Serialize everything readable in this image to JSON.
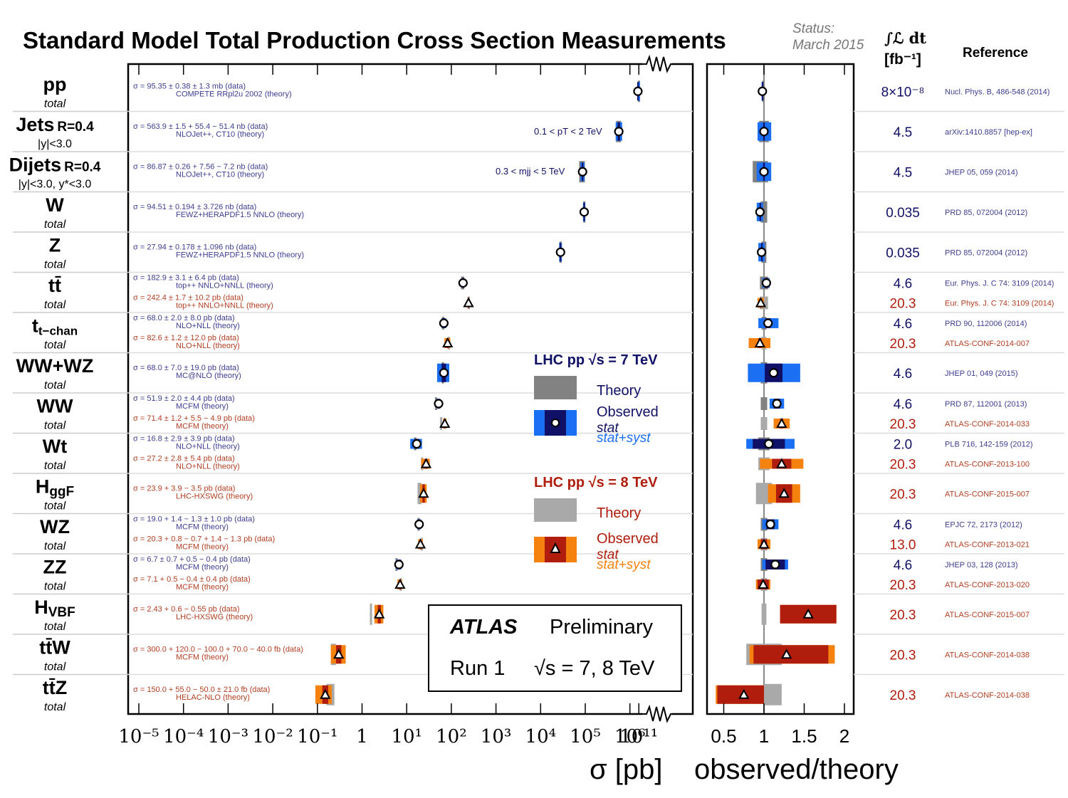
{
  "title": "Standard Model Total Production Cross Section Measurements",
  "status_label": "Status:",
  "status_date": "March 2015",
  "lumi_header": "∫ℒ dt",
  "lumi_unit": "[fb⁻¹]",
  "reference_header": "Reference",
  "colors": {
    "blue_dark": "#101066",
    "blue_light": "#1b6ff2",
    "red_dark": "#b01d0d",
    "orange": "#f5820f",
    "theory7": "#828282",
    "theory8": "#a9a9a9",
    "text7": "#3d3d8f",
    "text8": "#b03e22"
  },
  "legend7": {
    "title": "LHC pp  √s = 7 TeV",
    "theory": "Theory",
    "observed": "Observed",
    "stat": "stat",
    "statsyst": "stat+syst"
  },
  "legend8": {
    "title": "LHC pp  √s = 8 TeV",
    "theory": "Theory",
    "observed": "Observed",
    "stat": "stat",
    "statsyst": "stat+syst"
  },
  "atlas_box": {
    "atlas": "ATLAS",
    "preliminary": "Preliminary",
    "run": "Run 1",
    "energy": "√s = 7, 8 TeV"
  },
  "chart_data": {
    "type": "scatter",
    "x_axis": {
      "label": "σ [pb]",
      "scale": "log",
      "ticks": [
        "10⁻⁵",
        "10⁻⁴",
        "10⁻³",
        "10⁻²",
        "10⁻¹",
        "1",
        "10¹",
        "10²",
        "10³",
        "10⁴",
        "10⁵",
        "10⁶",
        "10¹¹"
      ],
      "break_between": [
        "10⁶",
        "10¹¹"
      ]
    },
    "ratio_axis": {
      "label": "observed/theory",
      "ticks": [
        "0.5",
        "1",
        "1.5",
        "2"
      ],
      "range": [
        0.35,
        2.1
      ]
    },
    "annotations": [
      {
        "text": "0.1 < pT < 2 TeV",
        "row": "jets"
      },
      {
        "text": "0.3 < mjj < 5 TeV",
        "row": "dijets"
      }
    ],
    "processes": [
      {
        "id": "pp",
        "label": "pp",
        "sub": "",
        "note": "total",
        "measurements": [
          {
            "energy": 7,
            "marker": "circle",
            "sigma": 95350000000.0,
            "lo": 95200000000.0,
            "hi": 95500000000.0,
            "th_lo": 95300000000.0,
            "th_hi": 95400000000.0,
            "ratio": 0.98,
            "r_stat": [
              0.975,
              0.985
            ],
            "r_syst": [
              0.97,
              0.99
            ],
            "r_th": [
              0.978,
              0.982
            ],
            "lumi": "8×10⁻⁸",
            "ref": "Nucl. Phys. B, 486-548 (2014)",
            "text1": "σ = 95.35 ± 0.38 ± 1.3 mb (data)",
            "text2": "COMPETE RRpl2u 2002 (theory)"
          }
        ]
      },
      {
        "id": "jets",
        "label": "Jets",
        "sub": "R=0.4",
        "note": "|y|<3.0",
        "measurements": [
          {
            "energy": 7,
            "marker": "circle",
            "sigma": 564000.0,
            "lo": 480000.0,
            "hi": 670000.0,
            "th_lo": 490000.0,
            "th_hi": 630000.0,
            "ratio": 1.0,
            "r_stat": [
              0.99,
              1.01
            ],
            "r_syst": [
              0.92,
              1.09
            ],
            "r_th": [
              0.94,
              1.06
            ],
            "lumi": "4.5",
            "ref": "arXiv:1410.8857 [hep-ex]",
            "text1": "σ = 563.9 ± 1.5 + 55.4 − 51.4 nb (data)",
            "text2": "NLOJet++, CT10 (theory)"
          }
        ]
      },
      {
        "id": "dijets",
        "label": "Dijets",
        "sub": "R=0.4",
        "note": "|y|<3.0, y*<3.0",
        "measurements": [
          {
            "energy": 7,
            "marker": "circle",
            "sigma": 86900.0,
            "lo": 78000.0,
            "hi": 96000.0,
            "th_lo": 73000.0,
            "th_hi": 98000.0,
            "ratio": 1.0,
            "r_stat": [
              0.99,
              1.01
            ],
            "r_syst": [
              0.91,
              1.09
            ],
            "r_th": [
              0.86,
              1.05
            ],
            "lumi": "4.5",
            "ref": "JHEP 05, 059 (2014)",
            "text1": "σ = 86.87 ± 0.26 + 7.56 − 7.2 nb (data)",
            "text2": "NLOJet++, CT10 (theory)"
          }
        ]
      },
      {
        "id": "w",
        "label": "W",
        "sub": "",
        "note": "total",
        "measurements": [
          {
            "energy": 7,
            "marker": "circle",
            "sigma": 94500.0,
            "lo": 89000.0,
            "hi": 100000.0,
            "th_lo": 90000.0,
            "th_hi": 99000.0,
            "ratio": 0.95,
            "r_stat": [
              0.945,
              0.955
            ],
            "r_syst": [
              0.91,
              0.99
            ],
            "r_th": [
              0.96,
              1.04
            ],
            "lumi": "0.035",
            "ref": "PRD 85, 072004 (2012)",
            "text1": "σ = 94.51 ± 0.194 ± 3.726 nb (data)",
            "text2": "FEWZ+HERAPDF1.5 NNLO (theory)"
          }
        ]
      },
      {
        "id": "z",
        "label": "Z",
        "sub": "",
        "note": "total",
        "measurements": [
          {
            "energy": 7,
            "marker": "circle",
            "sigma": 27900.0,
            "lo": 26000.0,
            "hi": 30000.0,
            "th_lo": 26500.0,
            "th_hi": 29500.0,
            "ratio": 0.97,
            "r_stat": [
              0.965,
              0.975
            ],
            "r_syst": [
              0.93,
              1.01
            ],
            "r_th": [
              0.97,
              1.03
            ],
            "lumi": "0.035",
            "ref": "PRD 85, 072004 (2012)",
            "text1": "σ = 27.94 ± 0.178 ± 1.096 nb (data)",
            "text2": "FEWZ+HERAPDF1.5 NNLO (theory)"
          }
        ]
      },
      {
        "id": "tt",
        "label": "tt̄",
        "sub": "",
        "note": "total",
        "measurements": [
          {
            "energy": 7,
            "marker": "circle",
            "sigma": 182.9,
            "lo": 172,
            "hi": 194,
            "th_lo": 165,
            "th_hi": 195,
            "ratio": 1.03,
            "r_stat": [
              1.01,
              1.05
            ],
            "r_syst": [
              0.98,
              1.07
            ],
            "r_th": [
              0.95,
              1.05
            ],
            "lumi": "4.6",
            "ref": "Eur. Phys. J. C 74: 3109 (2014)",
            "text1": "σ = 182.9 ± 3.1 ± 6.4 pb (data)",
            "text2": "top++ NNLO+NNLL (theory)"
          },
          {
            "energy": 8,
            "marker": "triangle",
            "sigma": 242.4,
            "lo": 230,
            "hi": 255,
            "th_lo": 230,
            "th_hi": 262,
            "ratio": 0.96,
            "r_stat": [
              0.95,
              0.97
            ],
            "r_syst": [
              0.92,
              1.0
            ],
            "r_th": [
              0.95,
              1.05
            ],
            "lumi": "20.3",
            "ref": "Eur. Phys. J. C 74: 3109 (2014)",
            "text1": "σ = 242.4 ± 1.7 ± 10.2 pb (data)",
            "text2": "top++ NNLO+NNLL (theory)"
          }
        ]
      },
      {
        "id": "tchan",
        "label": "t",
        "sub": "t−chan",
        "note": "total",
        "measurements": [
          {
            "energy": 7,
            "marker": "circle",
            "sigma": 68.0,
            "lo": 60,
            "hi": 77,
            "th_lo": 62,
            "th_hi": 67,
            "ratio": 1.05,
            "r_stat": [
              1.02,
              1.08
            ],
            "r_syst": [
              0.93,
              1.18
            ],
            "r_th": [
              0.97,
              1.03
            ],
            "lumi": "4.6",
            "ref": "PRD 90, 112006 (2014)",
            "text1": "σ = 68.0 ± 2.0 ± 8.0 pb (data)",
            "text2": "NLO+NLL (theory)"
          },
          {
            "energy": 8,
            "marker": "triangle",
            "sigma": 82.6,
            "lo": 70,
            "hi": 95,
            "th_lo": 84,
            "th_hi": 89,
            "ratio": 0.95,
            "r_stat": [
              0.93,
              0.97
            ],
            "r_syst": [
              0.81,
              1.08
            ],
            "r_th": [
              0.97,
              1.03
            ],
            "lumi": "20.3",
            "ref": "ATLAS-CONF-2014-007",
            "text1": "σ = 82.6 ± 1.2 ± 12.0 pb (data)",
            "text2": "NLO+NLL (theory)"
          }
        ]
      },
      {
        "id": "wwwz",
        "label": "WW+WZ",
        "sub": "",
        "note": "total",
        "measurements": [
          {
            "energy": 7,
            "marker": "circle",
            "sigma": 68.0,
            "lo": 48,
            "hi": 90,
            "th_lo": 61,
            "th_hi": 67,
            "ratio": 1.12,
            "r_stat": [
              1.01,
              1.23
            ],
            "r_syst": [
              0.8,
              1.45
            ],
            "r_th": [
              0.96,
              1.04
            ],
            "lumi": "4.6",
            "ref": "JHEP 01, 049 (2015)",
            "text1": "σ = 68.0 ± 7.0 ± 19.0 pb (data)",
            "text2": "MC@NLO (theory)"
          }
        ]
      },
      {
        "id": "ww",
        "label": "WW",
        "sub": "",
        "note": "total",
        "measurements": [
          {
            "energy": 7,
            "marker": "circle",
            "sigma": 51.9,
            "lo": 47,
            "hi": 57,
            "th_lo": 43,
            "th_hi": 47,
            "ratio": 1.16,
            "r_stat": [
              1.12,
              1.2
            ],
            "r_syst": [
              1.07,
              1.25
            ],
            "r_th": [
              0.96,
              1.04
            ],
            "lumi": "4.6",
            "ref": "PRD 87, 112001 (2013)",
            "text1": "σ = 51.9 ± 2.0 ± 4.4 pb (data)",
            "text2": "MCFM (theory)"
          },
          {
            "energy": 8,
            "marker": "triangle",
            "sigma": 71.4,
            "lo": 65,
            "hi": 78,
            "th_lo": 56,
            "th_hi": 61,
            "ratio": 1.22,
            "r_stat": [
              1.2,
              1.24
            ],
            "r_syst": [
              1.12,
              1.32
            ],
            "r_th": [
              0.96,
              1.04
            ],
            "lumi": "20.3",
            "ref": "ATLAS-CONF-2014-033",
            "text1": "σ = 71.4 ± 1.2 + 5.5 − 4.9 pb (data)",
            "text2": "MCFM (theory)"
          }
        ]
      },
      {
        "id": "wt",
        "label": "Wt",
        "sub": "",
        "note": "total",
        "measurements": [
          {
            "energy": 7,
            "marker": "circle",
            "sigma": 16.8,
            "lo": 12,
            "hi": 22,
            "th_lo": 14.5,
            "th_hi": 16.5,
            "ratio": 1.06,
            "r_stat": [
              0.86,
              1.26
            ],
            "r_syst": [
              0.78,
              1.38
            ],
            "r_th": [
              0.93,
              1.07
            ],
            "lumi": "2.0",
            "ref": "PLB 716, 142-159 (2012)",
            "text1": "σ = 16.8 ± 2.9 ± 3.9 pb (data)",
            "text2": "NLO+NLL (theory)"
          },
          {
            "energy": 8,
            "marker": "triangle",
            "sigma": 27.2,
            "lo": 21,
            "hi": 33,
            "th_lo": 21,
            "th_hi": 23,
            "ratio": 1.22,
            "r_stat": [
              1.1,
              1.34
            ],
            "r_syst": [
              0.95,
              1.49
            ],
            "r_th": [
              0.93,
              1.07
            ],
            "lumi": "20.3",
            "ref": "ATLAS-CONF-2013-100",
            "text1": "σ = 27.2 ± 2.8 ± 5.4 pb (data)",
            "text2": "NLO+NLL (theory)"
          }
        ]
      },
      {
        "id": "hggf",
        "label": "H",
        "sub": "ggF",
        "note": "total",
        "measurements": [
          {
            "energy": 8,
            "marker": "triangle",
            "sigma": 23.9,
            "lo": 20,
            "hi": 28,
            "th_lo": 17.5,
            "th_hi": 21.5,
            "ratio": 1.25,
            "r_stat": [
              1.15,
              1.35
            ],
            "r_syst": [
              1.05,
              1.45
            ],
            "r_th": [
              0.9,
              1.1
            ],
            "lumi": "20.3",
            "ref": "ATLAS-CONF-2015-007",
            "text1": "σ = 23.9 + 3.9 − 3.5 pb (data)",
            "text2": "LHC-HXSWG (theory)"
          }
        ]
      },
      {
        "id": "wz",
        "label": "WZ",
        "sub": "",
        "note": "total",
        "measurements": [
          {
            "energy": 7,
            "marker": "circle",
            "sigma": 19.0,
            "lo": 17,
            "hi": 21,
            "th_lo": 17.5,
            "th_hi": 18.5,
            "ratio": 1.08,
            "r_stat": [
              1.03,
              1.13
            ],
            "r_syst": [
              0.98,
              1.18
            ],
            "r_th": [
              0.96,
              1.04
            ],
            "lumi": "4.6",
            "ref": "EPJC 72, 2173 (2012)",
            "text1": "σ = 19.0 + 1.4 − 1.3 ± 1.0 pb (data)",
            "text2": "MCFM (theory)"
          },
          {
            "energy": 8,
            "marker": "triangle",
            "sigma": 20.3,
            "lo": 18,
            "hi": 23,
            "th_lo": 20.5,
            "th_hi": 21.5,
            "ratio": 1.0,
            "r_stat": [
              0.96,
              1.04
            ],
            "r_syst": [
              0.92,
              1.08
            ],
            "r_th": [
              0.96,
              1.04
            ],
            "lumi": "13.0",
            "ref": "ATLAS-CONF-2013-021",
            "text1": "σ = 20.3 + 0.8 − 0.7 + 1.4 − 1.3 pb (data)",
            "text2": "MCFM (theory)"
          }
        ]
      },
      {
        "id": "zz",
        "label": "ZZ",
        "sub": "",
        "note": "total",
        "measurements": [
          {
            "energy": 7,
            "marker": "circle",
            "sigma": 6.7,
            "lo": 5.8,
            "hi": 7.6,
            "th_lo": 5.6,
            "th_hi": 6.1,
            "ratio": 1.14,
            "r_stat": [
              1.02,
              1.26
            ],
            "r_syst": [
              0.98,
              1.3
            ],
            "r_th": [
              0.96,
              1.04
            ],
            "lumi": "4.6",
            "ref": "JHEP 03, 128 (2013)",
            "text1": "σ = 6.7 ± 0.7 + 0.5 − 0.4 pb (data)",
            "text2": "MCFM (theory)"
          },
          {
            "energy": 8,
            "marker": "triangle",
            "sigma": 7.1,
            "lo": 6.2,
            "hi": 7.9,
            "th_lo": 7.0,
            "th_hi": 7.4,
            "ratio": 0.99,
            "r_stat": [
              0.92,
              1.06
            ],
            "r_syst": [
              0.9,
              1.08
            ],
            "r_th": [
              0.96,
              1.04
            ],
            "lumi": "20.3",
            "ref": "ATLAS-CONF-2013-020",
            "text1": "σ = 7.1 + 0.5 − 0.4 ± 0.4 pb (data)",
            "text2": "MCFM (theory)"
          }
        ]
      },
      {
        "id": "hvbf",
        "label": "H",
        "sub": "VBF",
        "note": "total",
        "measurements": [
          {
            "energy": 8,
            "marker": "triangle",
            "sigma": 2.43,
            "lo": 1.9,
            "hi": 3.0,
            "th_lo": 1.5,
            "th_hi": 1.6,
            "ratio": 1.55,
            "r_stat": [
              1.2,
              1.9
            ],
            "r_syst": [
              1.2,
              1.9
            ],
            "r_th": [
              0.97,
              1.03
            ],
            "lumi": "20.3",
            "ref": "ATLAS-CONF-2015-007",
            "text1": "σ = 2.43 + 0.6 − 0.55 pb (data)",
            "text2": "LHC-HXSWG (theory)"
          }
        ]
      },
      {
        "id": "ttw",
        "label": "tt̄W",
        "sub": "",
        "note": "total",
        "measurements": [
          {
            "energy": 8,
            "marker": "triangle",
            "sigma": 0.3,
            "lo": 0.2,
            "hi": 0.43,
            "th_lo": 0.2,
            "th_hi": 0.26,
            "ratio": 1.28,
            "r_stat": [
              0.87,
              1.8
            ],
            "r_syst": [
              0.82,
              1.88
            ],
            "r_th": [
              0.78,
              1.22
            ],
            "lumi": "20.3",
            "ref": "ATLAS-CONF-2014-038",
            "text1": "σ = 300.0 + 120.0 − 100.0 + 70.0 − 40.0 fb (data)",
            "text2": "MCFM (theory)"
          }
        ]
      },
      {
        "id": "ttz",
        "label": "tt̄Z",
        "sub": "",
        "note": "total",
        "measurements": [
          {
            "energy": 8,
            "marker": "triangle",
            "sigma": 0.15,
            "lo": 0.09,
            "hi": 0.21,
            "th_lo": 0.16,
            "th_hi": 0.24,
            "ratio": 0.75,
            "r_stat": [
              0.42,
              1.0
            ],
            "r_syst": [
              0.4,
              1.0
            ],
            "r_th": [
              1.0,
              1.22
            ],
            "lumi": "20.3",
            "ref": "ATLAS-CONF-2014-038",
            "text1": "σ = 150.0 + 55.0 − 50.0 ± 21.0 fb (data)",
            "text2": "HELAC-NLO (theory)"
          }
        ]
      }
    ]
  }
}
